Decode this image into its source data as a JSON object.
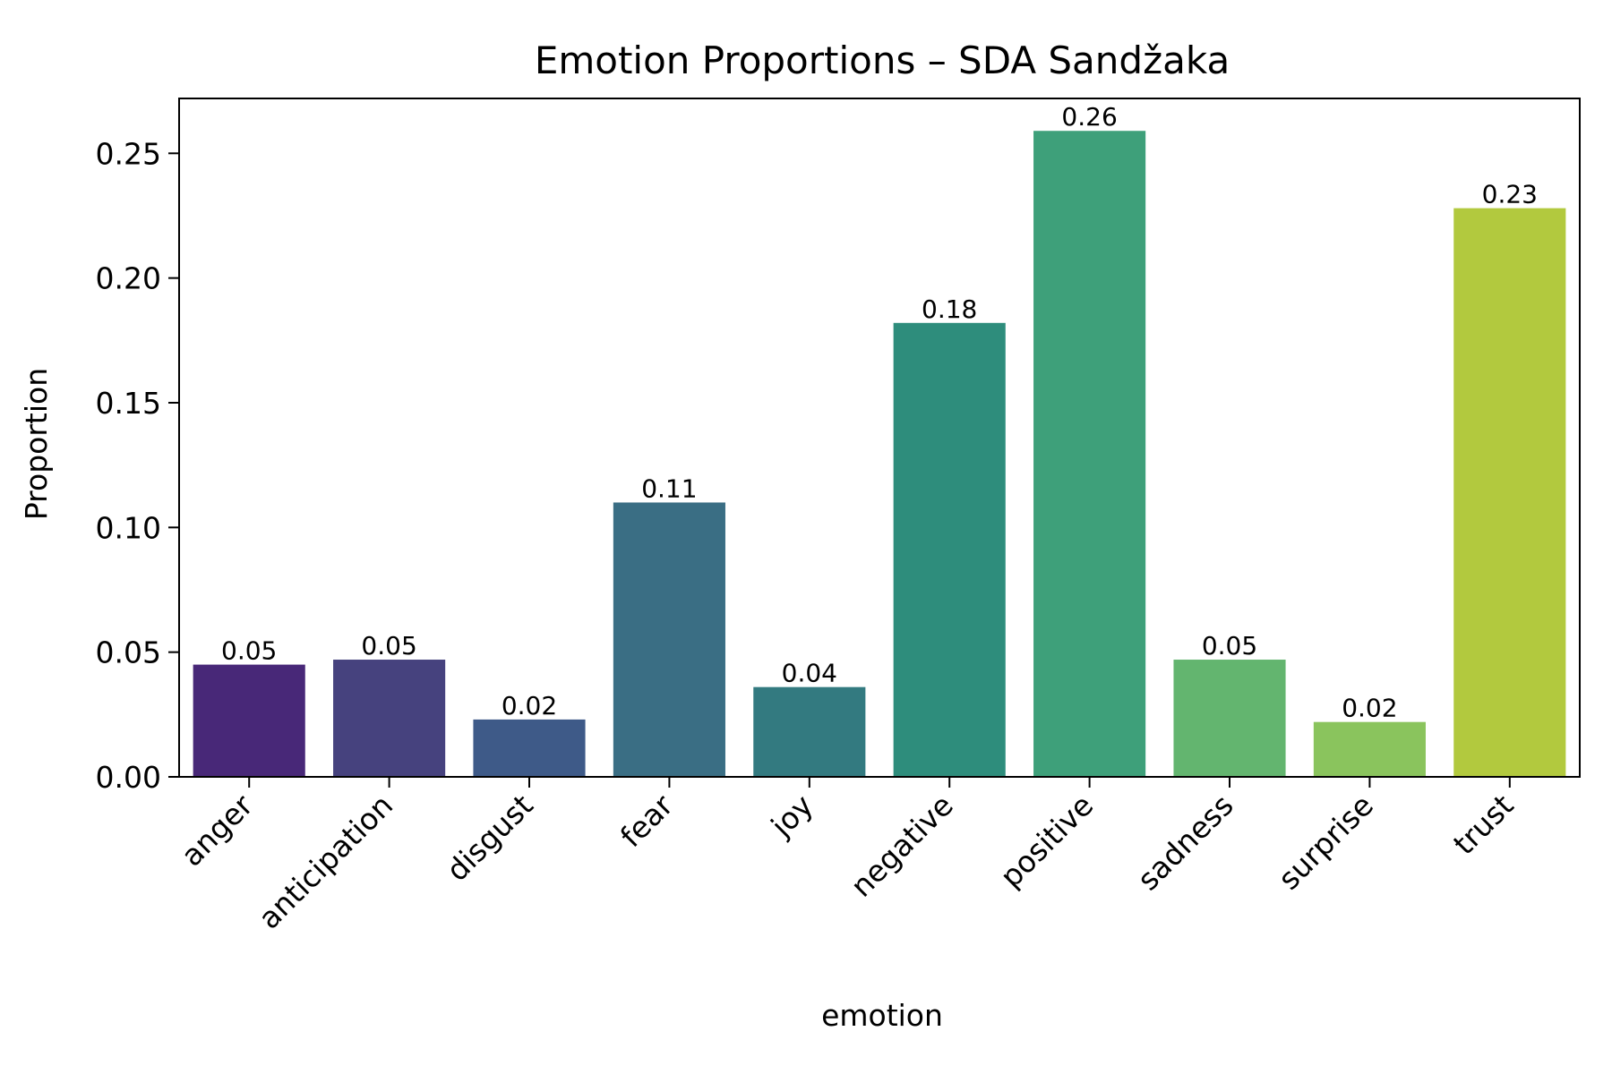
{
  "chart_data": {
    "type": "bar",
    "title": "Emotion Proportions – SDA Sandžaka",
    "xlabel": "emotion",
    "ylabel": "Proportion",
    "categories": [
      "anger",
      "anticipation",
      "disgust",
      "fear",
      "joy",
      "negative",
      "positive",
      "sadness",
      "surprise",
      "trust"
    ],
    "values": [
      0.045,
      0.047,
      0.023,
      0.11,
      0.036,
      0.182,
      0.259,
      0.047,
      0.022,
      0.228
    ],
    "data_labels": [
      "0.05",
      "0.05",
      "0.02",
      "0.11",
      "0.04",
      "0.18",
      "0.26",
      "0.05",
      "0.02",
      "0.23"
    ],
    "colors": [
      "#482878",
      "#46427e",
      "#3e5a88",
      "#3a6e84",
      "#337a80",
      "#2e8d7c",
      "#3ea07a",
      "#63b56f",
      "#8ac45d",
      "#b2c93e"
    ],
    "ylim": [
      0,
      0.272
    ],
    "yticks": [
      0.0,
      0.05,
      0.1,
      0.15,
      0.2,
      0.25
    ],
    "ytick_labels": [
      "0.00",
      "0.05",
      "0.10",
      "0.15",
      "0.20",
      "0.25"
    ],
    "grid": false,
    "legend": "none"
  }
}
